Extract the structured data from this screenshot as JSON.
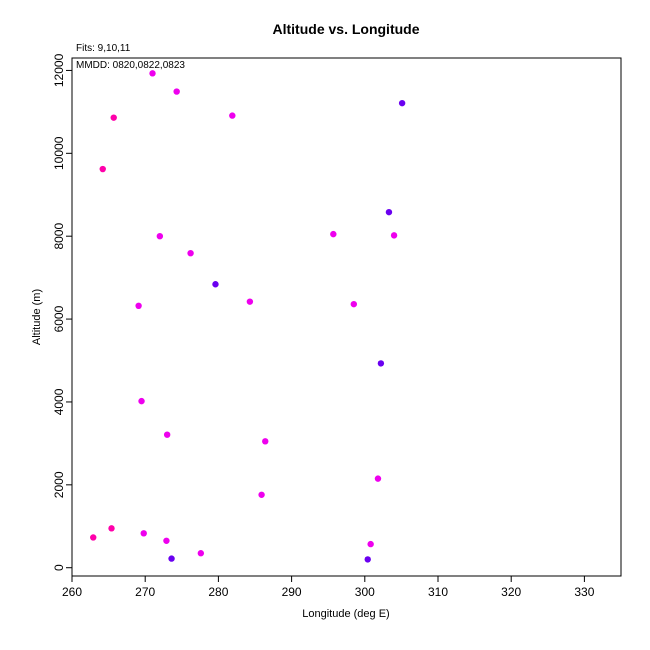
{
  "chart_data": {
    "type": "scatter",
    "title": "Altitude vs. Longitude",
    "xlabel": "Longitude (deg E)",
    "ylabel": "Altitude (m)",
    "xlim": [
      260,
      335
    ],
    "ylim": [
      -200,
      12300
    ],
    "xticks": [
      260,
      270,
      280,
      290,
      300,
      310,
      320,
      330
    ],
    "yticks": [
      0,
      2000,
      4000,
      6000,
      8000,
      10000,
      12000
    ],
    "grid": false,
    "annotations": [
      "Fits: 9,10,11",
      "MMDD: 0820,0822,0823"
    ],
    "colors": {
      "magenta": "#ee00ee",
      "pink": "#ff00aa",
      "violet": "#6a00f0"
    },
    "points": [
      {
        "x": 271.0,
        "y": 11930,
        "color": "#ee00ee"
      },
      {
        "x": 274.3,
        "y": 11490,
        "color": "#ee00ee"
      },
      {
        "x": 305.1,
        "y": 11210,
        "color": "#6a00f0"
      },
      {
        "x": 281.9,
        "y": 10910,
        "color": "#ee00ee"
      },
      {
        "x": 265.7,
        "y": 10860,
        "color": "#ff00aa"
      },
      {
        "x": 264.2,
        "y": 9620,
        "color": "#ff00aa"
      },
      {
        "x": 303.3,
        "y": 8580,
        "color": "#6a00f0"
      },
      {
        "x": 295.7,
        "y": 8050,
        "color": "#ee00ee"
      },
      {
        "x": 304.0,
        "y": 8020,
        "color": "#ee00ee"
      },
      {
        "x": 272.0,
        "y": 8000,
        "color": "#ee00ee"
      },
      {
        "x": 276.2,
        "y": 7590,
        "color": "#ee00ee"
      },
      {
        "x": 279.6,
        "y": 6840,
        "color": "#6a00f0"
      },
      {
        "x": 284.3,
        "y": 6420,
        "color": "#ee00ee"
      },
      {
        "x": 298.5,
        "y": 6360,
        "color": "#ee00ee"
      },
      {
        "x": 269.1,
        "y": 6320,
        "color": "#ee00ee"
      },
      {
        "x": 302.2,
        "y": 4930,
        "color": "#6a00f0"
      },
      {
        "x": 269.5,
        "y": 4020,
        "color": "#ee00ee"
      },
      {
        "x": 273.0,
        "y": 3210,
        "color": "#ee00ee"
      },
      {
        "x": 286.4,
        "y": 3050,
        "color": "#ee00ee"
      },
      {
        "x": 301.8,
        "y": 2150,
        "color": "#ee00ee"
      },
      {
        "x": 285.9,
        "y": 1760,
        "color": "#ee00ee"
      },
      {
        "x": 265.4,
        "y": 950,
        "color": "#ff00aa"
      },
      {
        "x": 269.8,
        "y": 830,
        "color": "#ee00ee"
      },
      {
        "x": 262.9,
        "y": 730,
        "color": "#ff00aa"
      },
      {
        "x": 272.9,
        "y": 650,
        "color": "#ee00ee"
      },
      {
        "x": 300.8,
        "y": 570,
        "color": "#ee00ee"
      },
      {
        "x": 277.6,
        "y": 350,
        "color": "#ee00ee"
      },
      {
        "x": 273.6,
        "y": 220,
        "color": "#6a00f0"
      },
      {
        "x": 300.4,
        "y": 200,
        "color": "#6a00f0"
      }
    ]
  }
}
